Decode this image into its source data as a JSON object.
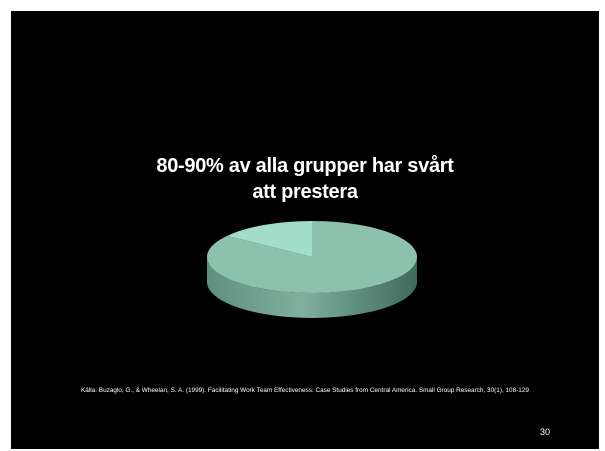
{
  "slide": {
    "title_line1": "80-90% av alla grupper har svårt",
    "title_line2": "att prestera",
    "source": "Källa: Buzaglo, G., & Wheelan, S. A. (1999). Facilitating Work Team Effectiveness: Case Studies from Central America. Small Group Research, 30(1), 108-129",
    "page_number": "30"
  },
  "chart_data": {
    "type": "pie",
    "style": "3d",
    "title": "80-90% av alla grupper har svårt att prestera",
    "slices": [
      {
        "value": 85,
        "color": "#8cc1ad"
      },
      {
        "value": 15,
        "color": "#a2ddc9"
      }
    ],
    "legend": "none"
  }
}
